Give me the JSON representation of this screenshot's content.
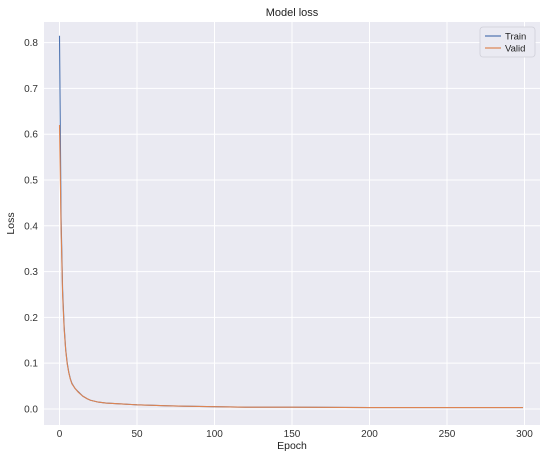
{
  "chart_data": {
    "type": "line",
    "title": "Model loss",
    "xlabel": "Epoch",
    "ylabel": "Loss",
    "xlim": [
      -10,
      310
    ],
    "ylim": [
      -0.035,
      0.845
    ],
    "x_ticks": [
      0,
      50,
      100,
      150,
      200,
      250,
      300
    ],
    "y_ticks": [
      0.0,
      0.1,
      0.2,
      0.3,
      0.4,
      0.5,
      0.6,
      0.7,
      0.8
    ],
    "grid": true,
    "background_color": "#eaeaf2",
    "legend_position": "top-right",
    "series": [
      {
        "name": "Train",
        "color": "#4c72b0",
        "x": [
          0,
          1,
          2,
          3,
          4,
          5,
          6,
          7,
          8,
          10,
          12,
          15,
          18,
          20,
          25,
          30,
          40,
          50,
          60,
          70,
          80,
          100,
          120,
          150,
          200,
          250,
          299
        ],
        "y": [
          0.815,
          0.42,
          0.26,
          0.18,
          0.13,
          0.1,
          0.08,
          0.066,
          0.056,
          0.045,
          0.038,
          0.028,
          0.022,
          0.019,
          0.015,
          0.013,
          0.011,
          0.009,
          0.008,
          0.007,
          0.006,
          0.005,
          0.004,
          0.004,
          0.003,
          0.003,
          0.003
        ]
      },
      {
        "name": "Valid",
        "color": "#dd8452",
        "x": [
          0,
          1,
          2,
          3,
          4,
          5,
          6,
          7,
          8,
          10,
          12,
          15,
          18,
          20,
          25,
          30,
          40,
          50,
          60,
          70,
          80,
          100,
          120,
          150,
          200,
          250,
          299
        ],
        "y": [
          0.62,
          0.4,
          0.25,
          0.175,
          0.128,
          0.098,
          0.079,
          0.065,
          0.055,
          0.045,
          0.037,
          0.028,
          0.022,
          0.019,
          0.015,
          0.013,
          0.011,
          0.009,
          0.008,
          0.007,
          0.006,
          0.005,
          0.004,
          0.004,
          0.003,
          0.003,
          0.003
        ]
      }
    ]
  }
}
